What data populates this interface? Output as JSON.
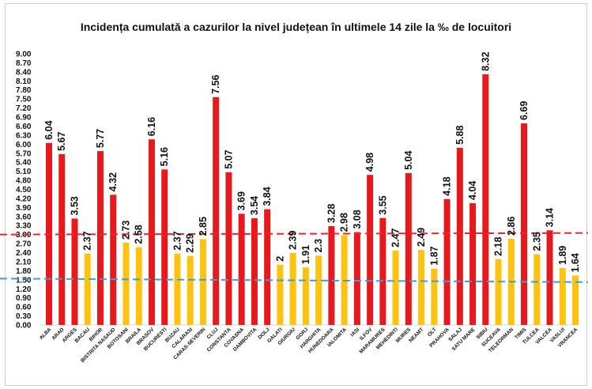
{
  "chart_data": {
    "type": "bar",
    "title": "Incidența cumulată a cazurilor la nivel județean în ultimele 14 zile la ‰ de locuitori",
    "ylim": [
      0,
      9
    ],
    "y_ticks": [
      "0.00",
      "0.30",
      "0.60",
      "0.90",
      "1.20",
      "1.50",
      "1.80",
      "2.10",
      "2.40",
      "2.70",
      "3.00",
      "3.30",
      "3.60",
      "3.90",
      "4.20",
      "4.50",
      "4.80",
      "5.10",
      "5.40",
      "5.70",
      "6.00",
      "6.30",
      "6.60",
      "6.90",
      "7.20",
      "7.50",
      "7.80",
      "8.10",
      "8.40",
      "8.70",
      "9.00"
    ],
    "categories": [
      "ALBA",
      "ARAD",
      "ARGES",
      "BACAU",
      "BIHOR",
      "BISTRITA NASAUD",
      "BOTOSANI",
      "BRAILA",
      "BRASOV",
      "BUCURESTI",
      "BUZAU",
      "CALARASI",
      "CARAS-SEVERIN",
      "CLUJ",
      "CONSTANTA",
      "COVASNA",
      "DAMBOVITA",
      "DOLJ",
      "GALATI",
      "GIURGIU",
      "GORJ",
      "HARGHITA",
      "HUNEDOARA",
      "IALOMITA",
      "IASI",
      "ILFOV",
      "MARAMURES",
      "MEHEDINTI",
      "MURES",
      "NEAMT",
      "OLT",
      "PRAHOVA",
      "SALAJ",
      "SATU MARE",
      "SIBIU",
      "SUCEAVA",
      "TELEORMAN",
      "TIMIS",
      "TULCEA",
      "VALCEA",
      "VASLUI",
      "VRANCEA"
    ],
    "values": [
      6.04,
      5.67,
      3.53,
      2.37,
      5.77,
      4.32,
      2.73,
      2.58,
      6.16,
      5.16,
      2.37,
      2.29,
      2.85,
      7.56,
      5.07,
      3.69,
      3.54,
      3.84,
      2,
      2.39,
      1.91,
      2.3,
      3.28,
      2.98,
      3.08,
      4.98,
      3.55,
      2.47,
      5.04,
      2.49,
      1.87,
      4.18,
      5.88,
      4.04,
      8.32,
      2.18,
      2.86,
      6.69,
      2.35,
      3.14,
      1.89,
      1.64
    ],
    "value_labels": [
      "6.04",
      "5.67",
      "3.53",
      "2.37",
      "5.77",
      "4.32",
      "2.73",
      "2.58",
      "6.16",
      "5.16",
      "2.37",
      "2.29",
      "2.85",
      "7.56",
      "5.07",
      "3.69",
      "3.54",
      "3.84",
      "2",
      "2.39",
      "1.91",
      "2.3",
      "3.28",
      "2.98",
      "3.08",
      "4.98",
      "3.55",
      "2.47",
      "5.04",
      "2.49",
      "1.87",
      "4.18",
      "5.88",
      "4.04",
      "8.32",
      "2.18",
      "2.86",
      "6.69",
      "2.35",
      "3.14",
      "1.89",
      "1.64"
    ],
    "thresholds": [
      {
        "value": 3.0,
        "color": "#e8262a",
        "style": "dashed"
      },
      {
        "value": 1.5,
        "color": "#3a9fd8",
        "style": "dashed"
      }
    ],
    "colors": {
      "above_3": "#e8191d",
      "below_3": "#ffc20e"
    },
    "grid": false,
    "legend": "none"
  }
}
